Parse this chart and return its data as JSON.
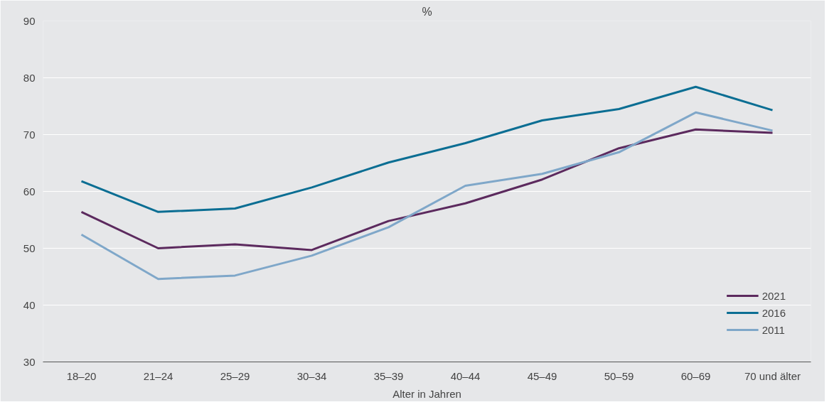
{
  "chart_data": {
    "type": "line",
    "title": "%",
    "xlabel": "Alter in Jahren",
    "categories": [
      "18–20",
      "21–24",
      "25–29",
      "30–34",
      "35–39",
      "40–44",
      "45–49",
      "50–59",
      "60–69",
      "70 und älter"
    ],
    "series": [
      {
        "name": "2021",
        "color": "#5c2a5e",
        "values": [
          56.4,
          50.0,
          50.7,
          49.7,
          54.8,
          57.9,
          62.1,
          67.6,
          70.9,
          70.3
        ]
      },
      {
        "name": "2016",
        "color": "#0b6e93",
        "values": [
          61.8,
          56.4,
          57.0,
          60.7,
          65.1,
          68.5,
          72.5,
          74.5,
          78.4,
          74.3
        ]
      },
      {
        "name": "2011",
        "color": "#7fa7c9",
        "values": [
          52.4,
          44.6,
          45.2,
          48.7,
          53.7,
          61.0,
          63.1,
          66.9,
          73.9,
          70.7
        ]
      }
    ],
    "ylim": [
      30,
      90
    ],
    "yticks": [
      30,
      40,
      50,
      60,
      70,
      80,
      90
    ],
    "grid": "y",
    "legend": "bottom right",
    "marker": "none",
    "line_style": "solid"
  }
}
